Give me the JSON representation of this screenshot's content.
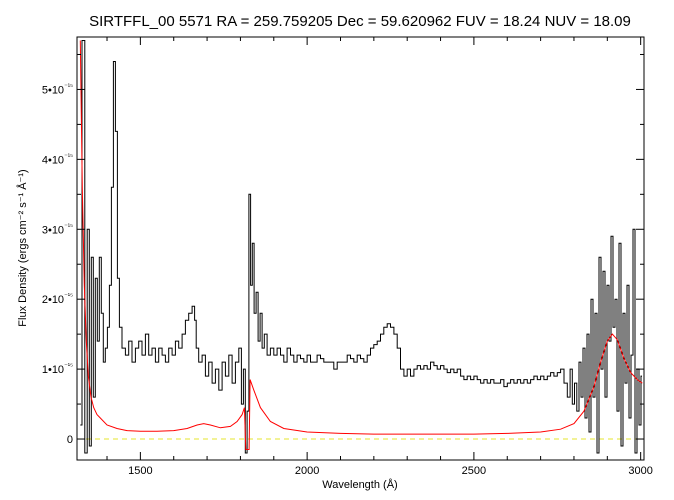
{
  "chart_data": {
    "type": "line",
    "title": "SIRTFFL_00 5571 RA = 259.759205 Dec =  59.620962 FUV = 18.24 NUV = 18.09",
    "xlabel": "Wavelength (Å)",
    "ylabel": "Flux Density (ergs cm⁻² s⁻¹ Å⁻¹)",
    "xlim": [
      1310,
      3010
    ],
    "ylim": [
      -3e-16,
      5.75e-15
    ],
    "grid": false,
    "x_ticks": [
      {
        "value": 1500,
        "label": "1500"
      },
      {
        "value": 2000,
        "label": "2000"
      },
      {
        "value": 2500,
        "label": "2500"
      },
      {
        "value": 3000,
        "label": "3000"
      }
    ],
    "y_ticks": [
      {
        "value": 0,
        "label": "0"
      },
      {
        "value": 1e-15,
        "label": "1•10⁻¹⁵"
      },
      {
        "value": 2e-15,
        "label": "2•10⁻¹⁵"
      },
      {
        "value": 3e-15,
        "label": "3•10⁻¹⁵"
      },
      {
        "value": 4e-15,
        "label": "4•10⁻¹⁵"
      },
      {
        "value": 5e-15,
        "label": "5•10⁻¹⁵"
      }
    ],
    "series": [
      {
        "color": "#000000",
        "style": "histogram",
        "points": [
          [
            1320,
            2e-16
          ],
          [
            1330,
            5.7e-15
          ],
          [
            1337,
            -2e-16
          ],
          [
            1344,
            3e-15
          ],
          [
            1350,
            -1e-16
          ],
          [
            1356,
            2.6e-15
          ],
          [
            1362,
            6e-16
          ],
          [
            1368,
            2.3e-15
          ],
          [
            1374,
            1.4e-15
          ],
          [
            1380,
            2.6e-15
          ],
          [
            1386,
            1.8e-15
          ],
          [
            1392,
            1.1e-15
          ],
          [
            1398,
            1.3e-15
          ],
          [
            1404,
            1.6e-15
          ],
          [
            1410,
            2.2e-15
          ],
          [
            1416,
            3.6e-15
          ],
          [
            1422,
            5.4e-15
          ],
          [
            1428,
            4.4e-15
          ],
          [
            1434,
            2.3e-15
          ],
          [
            1440,
            1.6e-15
          ],
          [
            1450,
            1.3e-15
          ],
          [
            1460,
            1.2e-15
          ],
          [
            1470,
            1.4e-15
          ],
          [
            1480,
            1.1e-15
          ],
          [
            1490,
            1.3e-15
          ],
          [
            1500,
            1.4e-15
          ],
          [
            1510,
            1.2e-15
          ],
          [
            1520,
            1.5e-15
          ],
          [
            1530,
            1.2e-15
          ],
          [
            1540,
            1.3e-15
          ],
          [
            1550,
            1.1e-15
          ],
          [
            1560,
            1.3e-15
          ],
          [
            1570,
            1.2e-15
          ],
          [
            1580,
            1.1e-15
          ],
          [
            1590,
            1.3e-15
          ],
          [
            1600,
            1.2e-15
          ],
          [
            1610,
            1.4e-15
          ],
          [
            1620,
            1.3e-15
          ],
          [
            1630,
            1.5e-15
          ],
          [
            1640,
            1.7e-15
          ],
          [
            1650,
            1.8e-15
          ],
          [
            1660,
            1.9e-15
          ],
          [
            1665,
            1.7e-15
          ],
          [
            1670,
            1.3e-15
          ],
          [
            1680,
            1.1e-15
          ],
          [
            1690,
            1.2e-15
          ],
          [
            1700,
            9e-16
          ],
          [
            1710,
            1.1e-15
          ],
          [
            1720,
            8e-16
          ],
          [
            1730,
            1e-15
          ],
          [
            1740,
            7e-16
          ],
          [
            1750,
            1.1e-15
          ],
          [
            1760,
            9e-16
          ],
          [
            1770,
            1.2e-15
          ],
          [
            1780,
            8e-16
          ],
          [
            1790,
            1.1e-15
          ],
          [
            1800,
            1.3e-15
          ],
          [
            1806,
            5e-16
          ],
          [
            1812,
            1e-15
          ],
          [
            1817,
            -2e-16
          ],
          [
            1823,
            4e-16
          ],
          [
            1828,
            3.5e-15
          ],
          [
            1833,
            2.2e-15
          ],
          [
            1838,
            2.8e-15
          ],
          [
            1844,
            1.8e-15
          ],
          [
            1850,
            2.1e-15
          ],
          [
            1856,
            1.4e-15
          ],
          [
            1862,
            1.8e-15
          ],
          [
            1868,
            1.3e-15
          ],
          [
            1875,
            1.5e-15
          ],
          [
            1885,
            1.2e-15
          ],
          [
            1895,
            1.3e-15
          ],
          [
            1905,
            1.2e-15
          ],
          [
            1915,
            1.3e-15
          ],
          [
            1925,
            1.2e-15
          ],
          [
            1935,
            1.1e-15
          ],
          [
            1945,
            1.3e-15
          ],
          [
            1955,
            1.2e-15
          ],
          [
            1965,
            1.1e-15
          ],
          [
            1975,
            1.2e-15
          ],
          [
            1985,
            1.15e-15
          ],
          [
            1995,
            1.1e-15
          ],
          [
            2005,
            1.2e-15
          ],
          [
            2015,
            1.1e-15
          ],
          [
            2025,
            1.1e-15
          ],
          [
            2035,
            1.2e-15
          ],
          [
            2045,
            1.15e-15
          ],
          [
            2055,
            1.1e-15
          ],
          [
            2065,
            1.1e-15
          ],
          [
            2075,
            1.1e-15
          ],
          [
            2085,
            1e-15
          ],
          [
            2095,
            1.1e-15
          ],
          [
            2105,
            1.1e-15
          ],
          [
            2115,
            1.1e-15
          ],
          [
            2125,
            1.2e-15
          ],
          [
            2135,
            1.15e-15
          ],
          [
            2145,
            1.1e-15
          ],
          [
            2155,
            1.2e-15
          ],
          [
            2165,
            1.15e-15
          ],
          [
            2175,
            1.1e-15
          ],
          [
            2185,
            1.2e-15
          ],
          [
            2195,
            1.3e-15
          ],
          [
            2205,
            1.35e-15
          ],
          [
            2215,
            1.4e-15
          ],
          [
            2225,
            1.5e-15
          ],
          [
            2235,
            1.6e-15
          ],
          [
            2245,
            1.65e-15
          ],
          [
            2255,
            1.6e-15
          ],
          [
            2265,
            1.5e-15
          ],
          [
            2275,
            1.3e-15
          ],
          [
            2285,
            1e-15
          ],
          [
            2295,
            9e-16
          ],
          [
            2305,
            1e-15
          ],
          [
            2315,
            9e-16
          ],
          [
            2325,
            1e-15
          ],
          [
            2335,
            1.05e-15
          ],
          [
            2345,
            1e-15
          ],
          [
            2355,
            1.05e-15
          ],
          [
            2365,
            1e-15
          ],
          [
            2375,
            1.1e-15
          ],
          [
            2385,
            1.05e-15
          ],
          [
            2395,
            1e-15
          ],
          [
            2405,
            1.05e-15
          ],
          [
            2415,
            1e-15
          ],
          [
            2425,
            9.5e-16
          ],
          [
            2435,
            1e-15
          ],
          [
            2445,
            9.5e-16
          ],
          [
            2455,
            1e-15
          ],
          [
            2465,
            9e-16
          ],
          [
            2475,
            8.5e-16
          ],
          [
            2485,
            9e-16
          ],
          [
            2495,
            8.5e-16
          ],
          [
            2505,
            9e-16
          ],
          [
            2515,
            8.5e-16
          ],
          [
            2525,
            8e-16
          ],
          [
            2535,
            8.5e-16
          ],
          [
            2545,
            8e-16
          ],
          [
            2555,
            8.5e-16
          ],
          [
            2565,
            8e-16
          ],
          [
            2575,
            8e-16
          ],
          [
            2585,
            8.5e-16
          ],
          [
            2595,
            7.5e-16
          ],
          [
            2605,
            8e-16
          ],
          [
            2615,
            8.5e-16
          ],
          [
            2625,
            8e-16
          ],
          [
            2635,
            8.5e-16
          ],
          [
            2645,
            8e-16
          ],
          [
            2655,
            8.5e-16
          ],
          [
            2665,
            8e-16
          ],
          [
            2675,
            8.5e-16
          ],
          [
            2685,
            9e-16
          ],
          [
            2695,
            8.5e-16
          ],
          [
            2705,
            9e-16
          ],
          [
            2715,
            8.5e-16
          ],
          [
            2725,
            9e-16
          ],
          [
            2735,
            9.5e-16
          ],
          [
            2745,
            9e-16
          ],
          [
            2755,
            9.5e-16
          ],
          [
            2765,
            1e-15
          ],
          [
            2775,
            8e-16
          ],
          [
            2785,
            6e-16
          ],
          [
            2792,
            1e-15
          ],
          [
            2798,
            5e-16
          ],
          [
            2805,
            8e-16
          ],
          [
            2812,
            4e-16
          ],
          [
            2818,
            1.1e-15
          ],
          [
            2824,
            6e-16
          ],
          [
            2830,
            1.3e-15
          ],
          [
            2836,
            3e-16
          ],
          [
            2842,
            1.5e-15
          ],
          [
            2848,
            1e-16
          ],
          [
            2854,
            2e-15
          ],
          [
            2860,
            6e-16
          ],
          [
            2866,
            1.8e-15
          ],
          [
            2872,
            -2e-16
          ],
          [
            2878,
            2.6e-15
          ],
          [
            2884,
            1e-15
          ],
          [
            2890,
            2.4e-15
          ],
          [
            2896,
            6e-16
          ],
          [
            2902,
            2.2e-15
          ],
          [
            2908,
            1.4e-15
          ],
          [
            2914,
            2.9e-15
          ],
          [
            2920,
            1.6e-15
          ],
          [
            2926,
            2e-15
          ],
          [
            2932,
            4e-16
          ],
          [
            2938,
            2.8e-15
          ],
          [
            2944,
            -1e-16
          ],
          [
            2950,
            1.8e-15
          ],
          [
            2956,
            8e-16
          ],
          [
            2962,
            2.2e-15
          ],
          [
            2968,
            3e-16
          ],
          [
            2974,
            1.2e-15
          ],
          [
            2980,
            3e-15
          ],
          [
            2986,
            -2e-16
          ],
          [
            2992,
            1e-15
          ],
          [
            2998,
            2e-16
          ],
          [
            3004,
            9e-16
          ]
        ]
      },
      {
        "color": "#ff0000",
        "style": "line",
        "points": [
          [
            1320,
            5.7e-15
          ],
          [
            1326,
            3.6e-15
          ],
          [
            1332,
            2.2e-15
          ],
          [
            1338,
            1.4e-15
          ],
          [
            1344,
            9e-16
          ],
          [
            1352,
            6e-16
          ],
          [
            1360,
            4.5e-16
          ],
          [
            1370,
            3.5e-16
          ],
          [
            1380,
            3e-16
          ],
          [
            1400,
            2e-16
          ],
          [
            1430,
            1.5e-16
          ],
          [
            1460,
            1.2e-16
          ],
          [
            1500,
            1.1e-16
          ],
          [
            1550,
            1.1e-16
          ],
          [
            1600,
            1.2e-16
          ],
          [
            1640,
            1.5e-16
          ],
          [
            1670,
            2e-16
          ],
          [
            1690,
            2.2e-16
          ],
          [
            1710,
            2e-16
          ],
          [
            1740,
            1.6e-16
          ],
          [
            1770,
            1.8e-16
          ],
          [
            1790,
            2.5e-16
          ],
          [
            1805,
            3.5e-16
          ],
          [
            1812,
            4.5e-16
          ],
          [
            1816,
            -1.5e-16
          ],
          [
            1826,
            -1.5e-16
          ],
          [
            1829,
            8.5e-16
          ],
          [
            1840,
            7e-16
          ],
          [
            1860,
            4.5e-16
          ],
          [
            1890,
            2.5e-16
          ],
          [
            1930,
            1.5e-16
          ],
          [
            2000,
            1e-16
          ],
          [
            2100,
            8e-17
          ],
          [
            2200,
            7e-17
          ],
          [
            2300,
            7e-17
          ],
          [
            2400,
            7e-17
          ],
          [
            2500,
            7e-17
          ],
          [
            2600,
            8e-17
          ],
          [
            2700,
            1e-16
          ],
          [
            2760,
            1.4e-16
          ],
          [
            2800,
            2.2e-16
          ],
          [
            2830,
            4e-16
          ],
          [
            2860,
            7.5e-16
          ],
          [
            2880,
            1.1e-15
          ],
          [
            2900,
            1.4e-15
          ],
          [
            2915,
            1.5e-15
          ],
          [
            2930,
            1.42e-15
          ],
          [
            2950,
            1.15e-15
          ],
          [
            2970,
            9.5e-16
          ],
          [
            2990,
            8.5e-16
          ],
          [
            3005,
            8e-16
          ]
        ]
      }
    ],
    "reference_lines": [
      {
        "y": 0,
        "color": "#e6e62e",
        "style": "dashed"
      }
    ]
  }
}
